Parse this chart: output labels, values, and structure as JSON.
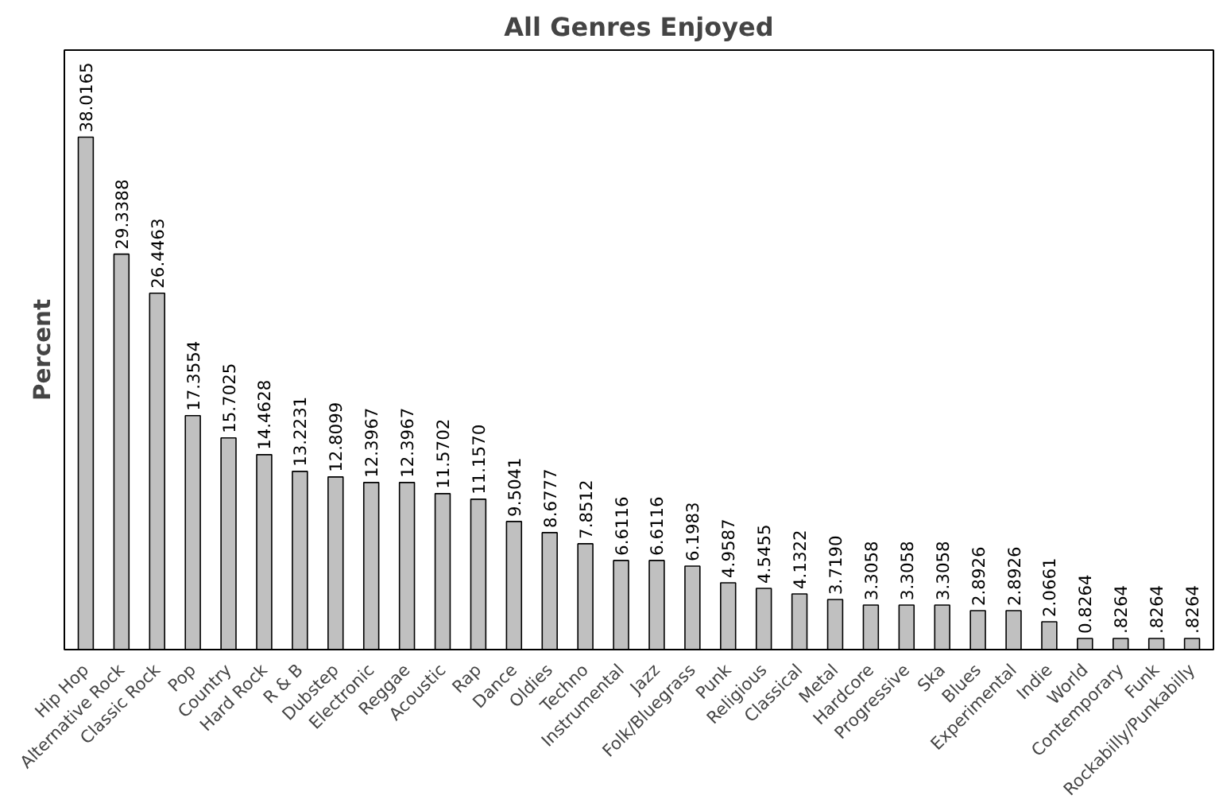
{
  "chart_data": {
    "type": "bar",
    "title": "All Genres Enjoyed",
    "ylabel": "Percent",
    "color": "#c0c0c0",
    "categories": [
      "Hip Hop",
      "Alternative Rock",
      "Classic Rock",
      "Pop",
      "Country",
      "Hard Rock",
      "R & B",
      "Dubstep",
      "Electronic",
      "Reggae",
      "Acoustic",
      "Rap",
      "Dance",
      "Oldies",
      "Techno",
      "Instrumental",
      "Jazz",
      "Folk/Bluegrass",
      "Punk",
      "Religious",
      "Classical",
      "Metal",
      "Hardcore",
      "Progressive",
      "Ska",
      "Blues",
      "Experimental",
      "Indie",
      "World",
      "Contemporary",
      "Funk",
      "Rockabilly/Punkabilly"
    ],
    "values": [
      38.0165,
      29.3388,
      26.4463,
      17.3554,
      15.7025,
      14.4628,
      13.2231,
      12.8099,
      12.3967,
      12.3967,
      11.5702,
      11.157,
      9.5041,
      8.6777,
      7.8512,
      6.6116,
      6.6116,
      6.1983,
      4.9587,
      4.5455,
      4.1322,
      3.719,
      3.3058,
      3.3058,
      3.3058,
      2.8926,
      2.8926,
      2.0661,
      0.8264,
      0.8264,
      0.8264,
      0.8264
    ],
    "value_labels": [
      "38.0165",
      "29.3388",
      "26.4463",
      "17.3554",
      "15.7025",
      "14.4628",
      "13.2231",
      "12.8099",
      "12.3967",
      "12.3967",
      "11.5702",
      "11.1570",
      "9.5041",
      "8.6777",
      "7.8512",
      "6.6116",
      "6.6116",
      "6.1983",
      "4.9587",
      "4.5455",
      "4.1322",
      "3.7190",
      "3.3058",
      "3.3058",
      "3.3058",
      "2.8926",
      "2.8926",
      "2.0661",
      "0.8264",
      ".8264",
      ".8264",
      ".8264"
    ],
    "grid": false
  }
}
